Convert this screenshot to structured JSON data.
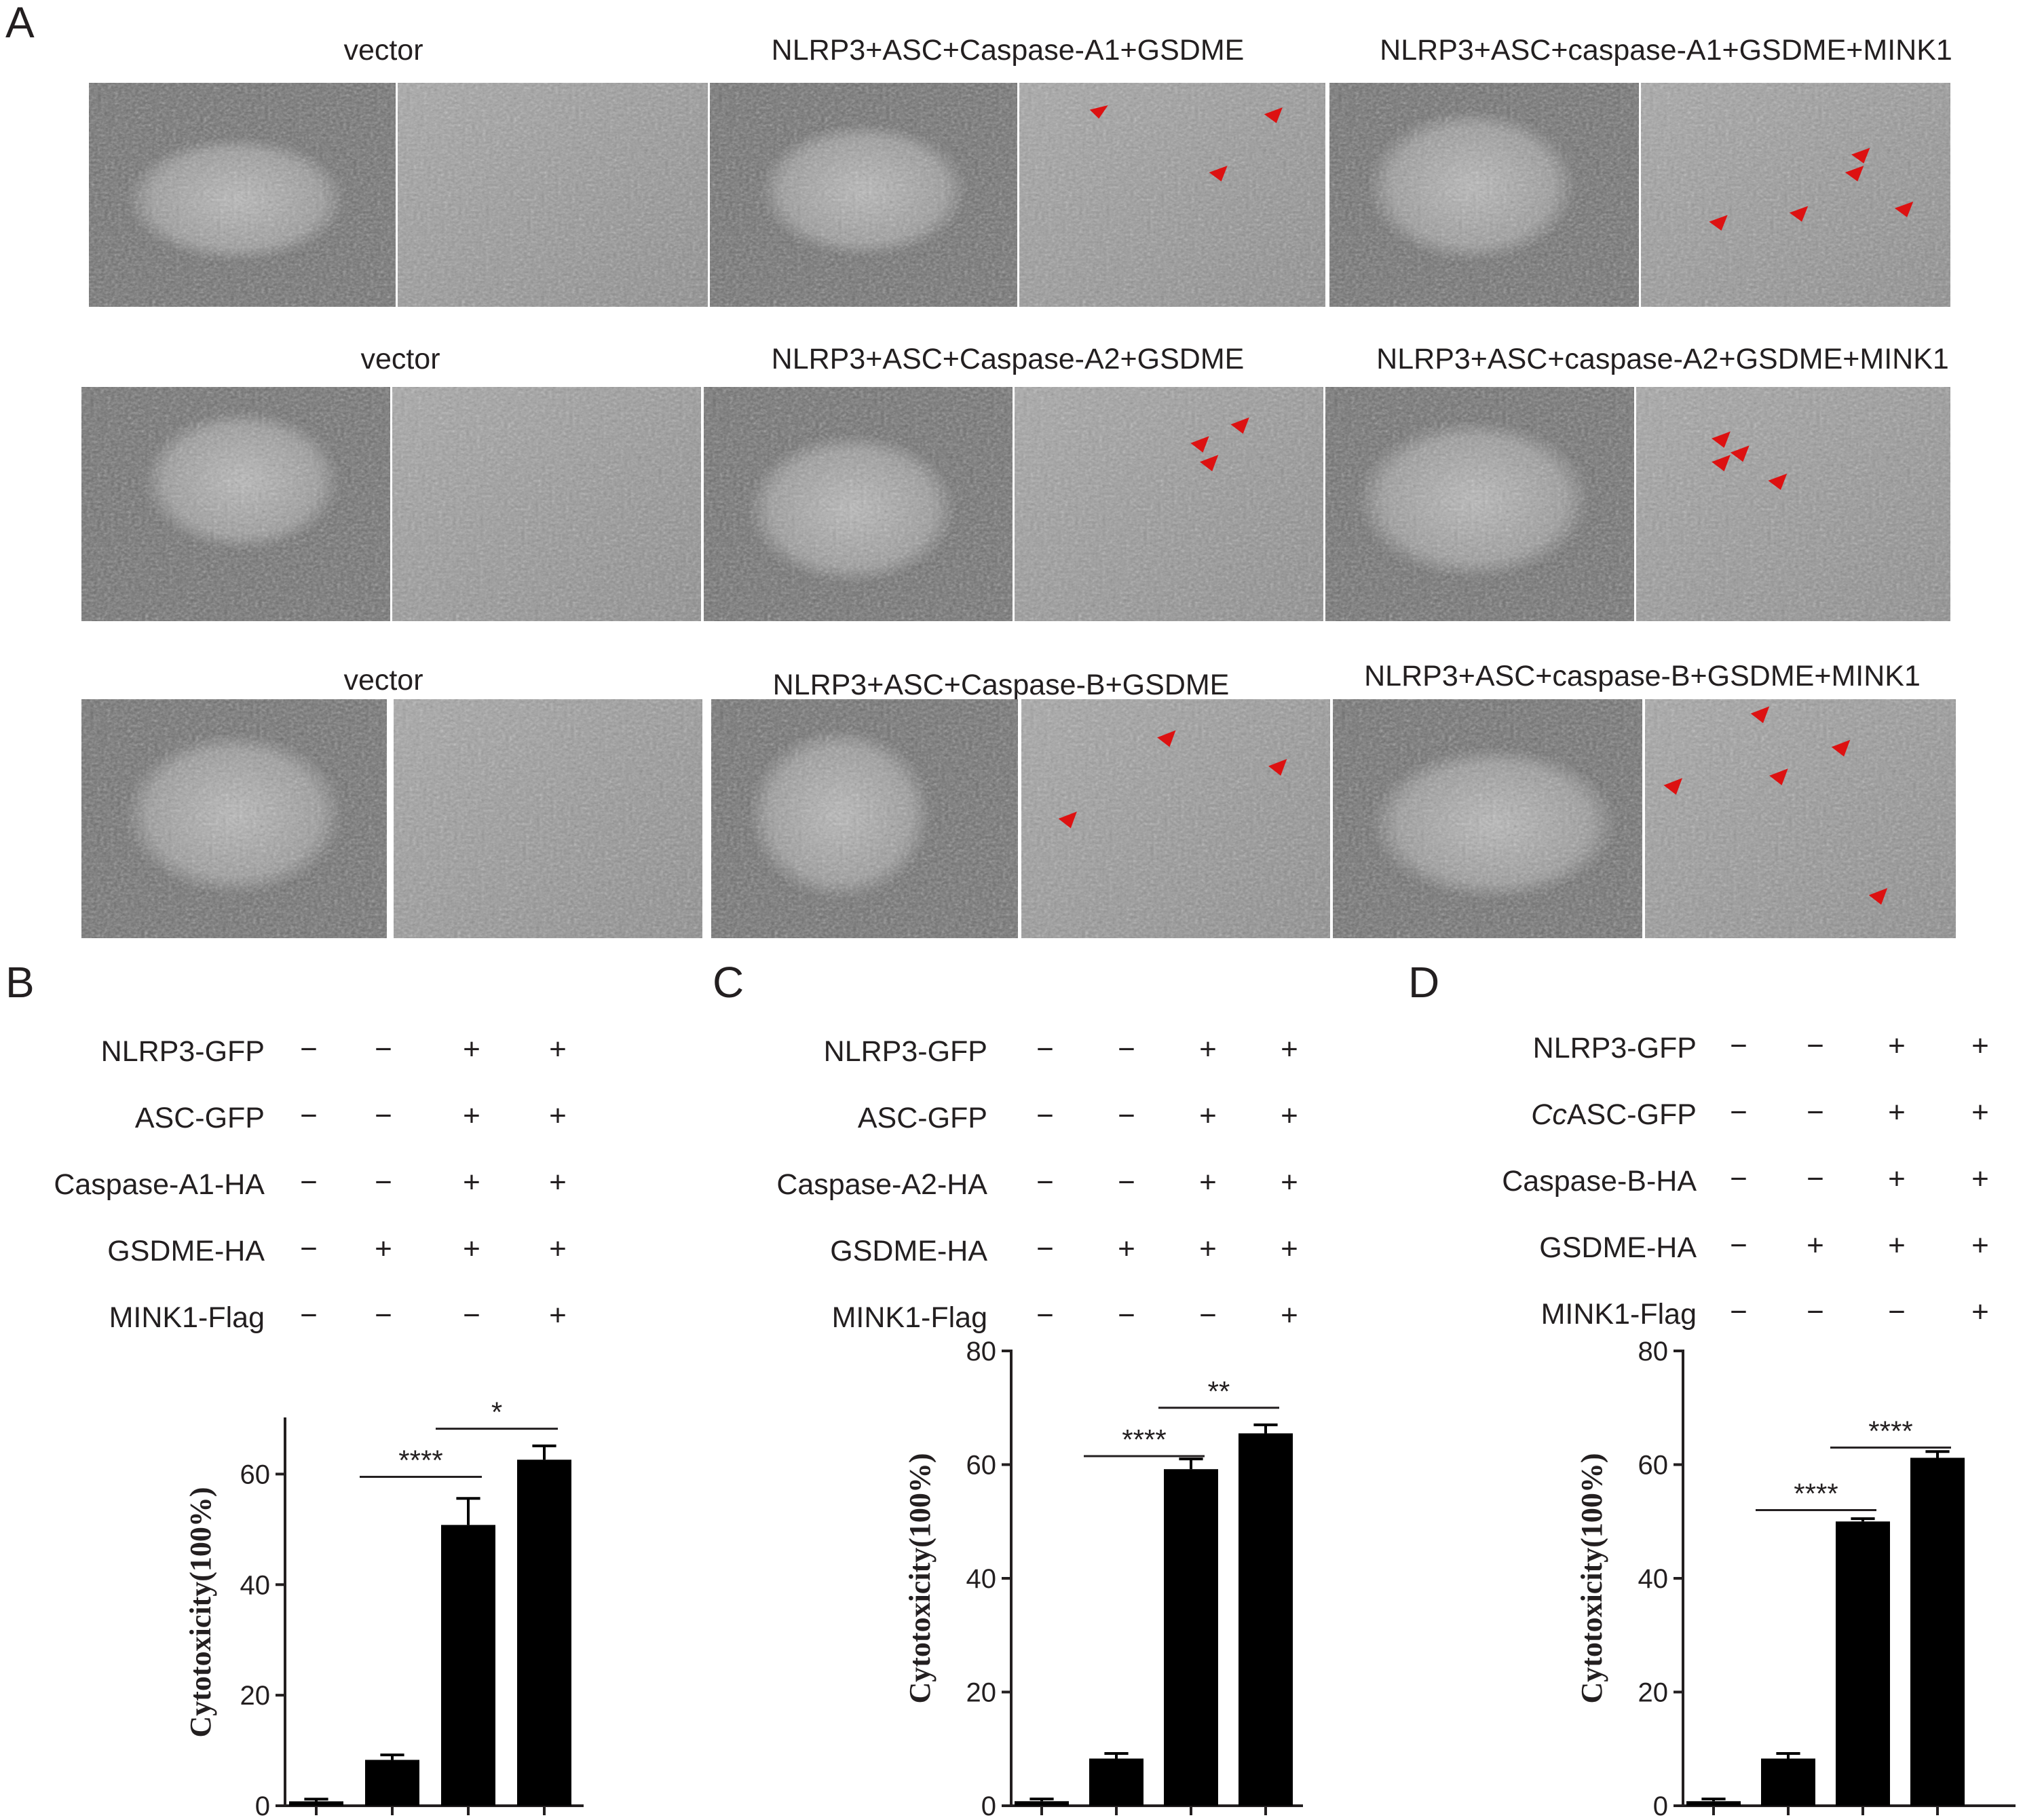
{
  "panel_a": {
    "label": "A",
    "rows": [
      {
        "groups": [
          "vector",
          "NLRP3+ASC+Caspase-A1+GSDME",
          "NLRP3+ASC+caspase-A1+GSDME+MINK1"
        ]
      },
      {
        "groups": [
          "vector",
          "NLRP3+ASC+Caspase-A2+GSDME",
          "NLRP3+ASC+caspase-A2+GSDME+MINK1"
        ]
      },
      {
        "groups": [
          "vector",
          "NLRP3+ASC+Caspase-B+GSDME",
          "NLRP3+ASC+caspase-B+GSDME+MINK1"
        ]
      }
    ]
  },
  "panels": [
    {
      "label": "B",
      "conditions": [
        {
          "name": "NLRP3-GFP",
          "signs": [
            "−",
            "−",
            "+",
            "+"
          ]
        },
        {
          "name": "ASC-GFP",
          "signs": [
            "−",
            "−",
            "+",
            "+"
          ]
        },
        {
          "name": "Caspase-A1-HA",
          "signs": [
            "−",
            "−",
            "+",
            "+"
          ]
        },
        {
          "name": "GSDME-HA",
          "signs": [
            "−",
            "+",
            "+",
            "+"
          ]
        },
        {
          "name": "MINK1-Flag",
          "signs": [
            "−",
            "−",
            "−",
            "+"
          ]
        }
      ]
    },
    {
      "label": "C",
      "conditions": [
        {
          "name": "NLRP3-GFP",
          "signs": [
            "−",
            "−",
            "+",
            "+"
          ]
        },
        {
          "name": "ASC-GFP",
          "signs": [
            "−",
            "−",
            "+",
            "+"
          ]
        },
        {
          "name": "Caspase-A2-HA",
          "signs": [
            "−",
            "−",
            "+",
            "+"
          ]
        },
        {
          "name": "GSDME-HA",
          "signs": [
            "−",
            "+",
            "+",
            "+"
          ]
        },
        {
          "name": "MINK1-Flag",
          "signs": [
            "−",
            "−",
            "−",
            "+"
          ]
        }
      ]
    },
    {
      "label": "D",
      "conditions": [
        {
          "name": "NLRP3-GFP",
          "signs": [
            "−",
            "−",
            "+",
            "+"
          ]
        },
        {
          "name": "CcASC-GFP",
          "italic_prefix": "Cc",
          "rest": "ASC-GFP",
          "signs": [
            "−",
            "−",
            "+",
            "+"
          ]
        },
        {
          "name": "Caspase-B-HA",
          "signs": [
            "−",
            "−",
            "+",
            "+"
          ]
        },
        {
          "name": "GSDME-HA",
          "signs": [
            "−",
            "+",
            "+",
            "+"
          ]
        },
        {
          "name": "MINK1-Flag",
          "signs": [
            "−",
            "−",
            "−",
            "+"
          ]
        }
      ]
    }
  ],
  "chart_data": [
    {
      "type": "bar",
      "panel": "B",
      "ylabel": "Cytotoxicity(100%)",
      "ylim": [
        0,
        70
      ],
      "yticks": [
        0,
        20,
        40,
        60
      ],
      "values": [
        0.8,
        8.3,
        50.8,
        62.6
      ],
      "errors": [
        0.4,
        0.9,
        4.8,
        2.5
      ],
      "bar_color": "#000000",
      "significance": [
        {
          "from": 1,
          "to": 2,
          "label": "****"
        },
        {
          "from": 2,
          "to": 3,
          "label": "*"
        }
      ]
    },
    {
      "type": "bar",
      "panel": "C",
      "ylabel": "Cytotoxicity(100%)",
      "ylim": [
        0,
        80
      ],
      "yticks": [
        0,
        20,
        40,
        60,
        80
      ],
      "values": [
        0.8,
        8.3,
        59.2,
        65.5
      ],
      "errors": [
        0.4,
        0.9,
        1.8,
        1.5
      ],
      "bar_color": "#000000",
      "significance": [
        {
          "from": 1,
          "to": 2,
          "label": "****"
        },
        {
          "from": 2,
          "to": 3,
          "label": "**"
        }
      ]
    },
    {
      "type": "bar",
      "panel": "D",
      "ylabel": "Cytotoxicity(100%)",
      "ylim": [
        0,
        80
      ],
      "yticks": [
        0,
        20,
        40,
        60,
        80
      ],
      "values": [
        0.8,
        8.3,
        50.0,
        61.2
      ],
      "errors": [
        0.4,
        0.9,
        0.5,
        1.1
      ],
      "bar_color": "#000000",
      "significance": [
        {
          "from": 1,
          "to": 2,
          "label": "****"
        },
        {
          "from": 2,
          "to": 3,
          "label": "****"
        }
      ]
    }
  ]
}
